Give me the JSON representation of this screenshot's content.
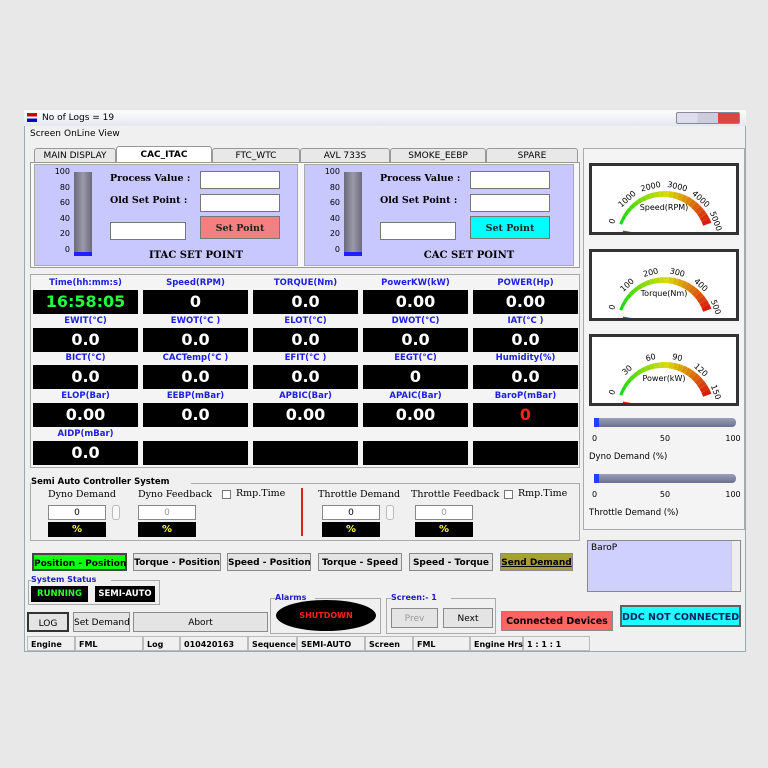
{
  "window": {
    "title": "No of Logs =  19",
    "menu": [
      "Screen",
      "OnLine View"
    ]
  },
  "tabs": [
    "MAIN DISPLAY",
    "CAC_ITAC",
    "FTC_WTC",
    "AVL 733S",
    "SMOKE_EEBP",
    "SPARE"
  ],
  "setpoint_panels": [
    {
      "scale": [
        "100",
        "80",
        "60",
        "40",
        "20",
        "0"
      ],
      "process_label": "Process Value :",
      "old_label": "Old Set Point :",
      "button": "Set Point",
      "caption": "ITAC SET POINT"
    },
    {
      "scale": [
        "100",
        "80",
        "60",
        "40",
        "20",
        "0"
      ],
      "process_label": "Process Value :",
      "old_label": "Old Set Point :",
      "button": "Set Point",
      "caption": "CAC SET POINT"
    }
  ],
  "readings": [
    {
      "label": "Time(hh:mm:s)",
      "value": "16:58:05"
    },
    {
      "label": "Speed(RPM)",
      "value": "0"
    },
    {
      "label": "TORQUE(Nm)",
      "value": "0.0"
    },
    {
      "label": "PowerKW(kW)",
      "value": "0.00"
    },
    {
      "label": "POWER(Hp)",
      "value": "0.00"
    },
    {
      "label": "EWIT(°C)",
      "value": "0.0"
    },
    {
      "label": "EWOT(°C )",
      "value": "0.0"
    },
    {
      "label": "ELOT(°C)",
      "value": "0.0"
    },
    {
      "label": "DWOT(°C)",
      "value": "0.0"
    },
    {
      "label": "IAT(°C )",
      "value": "0.0"
    },
    {
      "label": "BICT(°C)",
      "value": "0.0"
    },
    {
      "label": "CACTemp(°C )",
      "value": "0.0"
    },
    {
      "label": "EFIT(°C )",
      "value": "0.0"
    },
    {
      "label": "EEGT(°C)",
      "value": "0"
    },
    {
      "label": "Humidity(%)",
      "value": "0.0"
    },
    {
      "label": "ELOP(Bar)",
      "value": "0.00"
    },
    {
      "label": "EEBP(mBar)",
      "value": "0.0"
    },
    {
      "label": "APBIC(Bar)",
      "value": "0.00"
    },
    {
      "label": "APAIC(Bar)",
      "value": "0.00"
    },
    {
      "label": "BaroP(mBar)",
      "value": "0"
    },
    {
      "label": "AIDP(mBar)",
      "value": "0.0"
    }
  ],
  "gauges": [
    {
      "ticks": [
        "0",
        "1000",
        "2000",
        "3000",
        "4000",
        "5000"
      ],
      "label": "Speed(RPM)"
    },
    {
      "ticks": [
        "0",
        "100",
        "200",
        "300",
        "400",
        "500"
      ],
      "label": "Torque(Nm)"
    },
    {
      "ticks": [
        "0",
        "30",
        "60",
        "90",
        "120",
        "150"
      ],
      "label": "Power(kW)"
    }
  ],
  "sliders": [
    {
      "ticks": [
        "0",
        "50",
        "100"
      ],
      "label": "Dyno Demand (%)"
    },
    {
      "ticks": [
        "0",
        "50",
        "100"
      ],
      "label": "Throttle Demand (%)"
    }
  ],
  "controller": {
    "title": "Semi Auto Controller System",
    "fields": [
      {
        "label": "Dyno Demand",
        "value": "0",
        "unit": "%"
      },
      {
        "label": "Dyno Feedback",
        "value": "0",
        "unit": "%"
      },
      {
        "label": "Throttle Demand",
        "value": "0",
        "unit": "%"
      },
      {
        "label": "Throttle Feedback",
        "value": "0",
        "unit": "%"
      }
    ],
    "ramp_labels": [
      "Rmp.Time",
      "Rmp.Time"
    ]
  },
  "modes": [
    "Position - Position",
    "Torque  - Position",
    "Speed - Position",
    "Torque - Speed",
    "Speed - Torque",
    "Send Demand"
  ],
  "system_status": {
    "title": "System Status",
    "items": [
      "RUNNING",
      "SEMI-AUTO"
    ]
  },
  "alarms": {
    "title": "Alarms",
    "state": "SHUTDOWN"
  },
  "screen_nav": {
    "title": "Screen:- 1",
    "buttons": [
      "Prev",
      "Next"
    ]
  },
  "connected_devices": "Connected Devices",
  "ddc": "DDC NOT CONNECTED",
  "baro_list": "BaroP",
  "buttons": [
    "LOG",
    "Set Demand",
    "Abort"
  ],
  "status_bar": [
    "Engine",
    "FML",
    "Log",
    "010420163",
    "Sequence",
    "SEMI-AUTO",
    "Screen",
    "FML",
    "Engine Hrs",
    "1 : 1 : 1"
  ]
}
